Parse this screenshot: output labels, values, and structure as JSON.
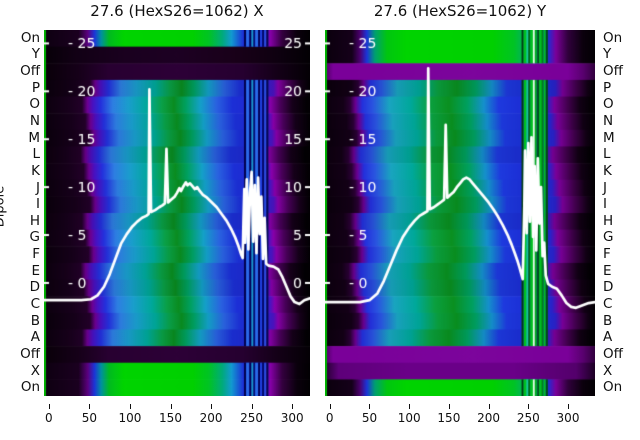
{
  "figure": {
    "ylabel": "Dipole",
    "background": "#ffffff",
    "curve_color": "#ffffff",
    "edge_line_color": "#00b400",
    "text_color": "#111111"
  },
  "row_labels": [
    "On",
    "Y",
    "Off",
    "P",
    "O",
    "N",
    "M",
    "L",
    "K",
    "J",
    "I",
    "H",
    "G",
    "F",
    "E",
    "D",
    "C",
    "B",
    "A",
    "Off",
    "X",
    "On"
  ],
  "profiles": {
    "bodyL": [
      [
        0,
        "#0c000e"
      ],
      [
        0.1,
        "#17001b"
      ],
      [
        0.155,
        "#230029"
      ],
      [
        0.175,
        "#6d0090"
      ],
      [
        0.195,
        "#4a10c0"
      ],
      [
        0.225,
        "#2430dc"
      ],
      [
        0.27,
        "#2e7ee2"
      ],
      [
        0.33,
        "#1a9ecc"
      ],
      [
        0.4,
        "#00a89a"
      ],
      [
        0.455,
        "#0aa048"
      ],
      [
        0.5,
        "#0a8c20"
      ],
      [
        0.545,
        "#00a060"
      ],
      [
        0.6,
        "#14a0c8"
      ],
      [
        0.66,
        "#2a62e0"
      ],
      [
        0.72,
        "#1c2fd6"
      ],
      [
        0.8,
        "#2028d0"
      ],
      [
        0.845,
        "#4b14c0"
      ],
      [
        0.862,
        "#8800aa"
      ],
      [
        0.9,
        "#49005a"
      ],
      [
        0.945,
        "#16001a"
      ],
      [
        1,
        "#030004"
      ]
    ],
    "greenL": [
      [
        0,
        "#0e0011"
      ],
      [
        0.13,
        "#1b0020"
      ],
      [
        0.165,
        "#5c0080"
      ],
      [
        0.19,
        "#1c35d8"
      ],
      [
        0.215,
        "#0090a0"
      ],
      [
        0.245,
        "#00bb20"
      ],
      [
        0.3,
        "#00d400"
      ],
      [
        0.56,
        "#00d000"
      ],
      [
        0.62,
        "#00c424"
      ],
      [
        0.67,
        "#00ab7a"
      ],
      [
        0.705,
        "#129ad0"
      ],
      [
        0.75,
        "#1c2fd6"
      ],
      [
        0.825,
        "#2222cc"
      ],
      [
        0.85,
        "#8800aa"
      ],
      [
        0.895,
        "#34003f"
      ],
      [
        0.95,
        "#0b000d"
      ],
      [
        1,
        "#020003"
      ]
    ],
    "darkL": [
      [
        0,
        "#070008"
      ],
      [
        0.12,
        "#120015"
      ],
      [
        0.3,
        "#1a001f"
      ],
      [
        0.5,
        "#1d0023"
      ],
      [
        0.72,
        "#190019"
      ],
      [
        0.88,
        "#0e0010"
      ],
      [
        1,
        "#030004"
      ]
    ],
    "offL": [
      [
        0,
        "#090009"
      ],
      [
        0.13,
        "#160019"
      ],
      [
        0.24,
        "#280031"
      ],
      [
        0.5,
        "#2d0037"
      ],
      [
        0.75,
        "#260030"
      ],
      [
        0.88,
        "#140017"
      ],
      [
        1,
        "#040005"
      ]
    ],
    "bodyR": [
      [
        0,
        "#0c000e"
      ],
      [
        0.08,
        "#140017"
      ],
      [
        0.105,
        "#2a0034"
      ],
      [
        0.125,
        "#6a0090"
      ],
      [
        0.15,
        "#2430dc"
      ],
      [
        0.19,
        "#2a55e0"
      ],
      [
        0.25,
        "#1aa4c0"
      ],
      [
        0.33,
        "#00a89a"
      ],
      [
        0.4,
        "#0ba040"
      ],
      [
        0.47,
        "#0a9020"
      ],
      [
        0.54,
        "#00a060"
      ],
      [
        0.6,
        "#1590cc"
      ],
      [
        0.655,
        "#1e3ade"
      ],
      [
        0.73,
        "#1c2fd6"
      ],
      [
        0.8,
        "#1c2fd6"
      ],
      [
        0.835,
        "#2a22c8"
      ],
      [
        0.862,
        "#7a0099"
      ],
      [
        0.91,
        "#43004f"
      ],
      [
        0.955,
        "#120015"
      ],
      [
        1,
        "#030004"
      ]
    ],
    "greenR": [
      [
        0,
        "#0b000d"
      ],
      [
        0.1,
        "#15001a"
      ],
      [
        0.13,
        "#4c0070"
      ],
      [
        0.155,
        "#1c35d8"
      ],
      [
        0.185,
        "#00a070"
      ],
      [
        0.23,
        "#00c610"
      ],
      [
        0.3,
        "#00d400"
      ],
      [
        0.62,
        "#00d000"
      ],
      [
        0.7,
        "#00c424"
      ],
      [
        0.755,
        "#00ab7a"
      ],
      [
        0.79,
        "#10a0c8"
      ],
      [
        0.825,
        "#1c2fd6"
      ],
      [
        0.855,
        "#7a0099"
      ],
      [
        0.9,
        "#30003c"
      ],
      [
        0.955,
        "#0b000d"
      ],
      [
        1,
        "#030004"
      ]
    ],
    "purpleR": [
      [
        0,
        "#4c0062"
      ],
      [
        0.03,
        "#7a0099"
      ],
      [
        0.55,
        "#7c059c"
      ],
      [
        0.9,
        "#7a0099"
      ],
      [
        0.955,
        "#5a0070"
      ],
      [
        1,
        "#31003d"
      ]
    ],
    "purpleR2": [
      [
        0,
        "#240030"
      ],
      [
        0.05,
        "#5e007a"
      ],
      [
        0.3,
        "#6a0088"
      ],
      [
        0.7,
        "#6a0088"
      ],
      [
        0.93,
        "#54006c"
      ],
      [
        1,
        "#1c0024"
      ]
    ]
  },
  "chart_data": [
    {
      "type": "heatmap+line",
      "title": "27.6 (HexS26=1062) X",
      "xticks": [
        0,
        50,
        100,
        150,
        200,
        250,
        300
      ],
      "xlim": [
        -6,
        322
      ],
      "ylim": [
        -11.8,
        26.4
      ],
      "yticks": [
        25,
        20,
        15,
        10,
        5,
        0
      ],
      "ytick_left_labels": [
        "- 25",
        "- 20",
        "- 15",
        "- 10",
        "- 5",
        "- 0"
      ],
      "ytick_right_labels": [
        "25",
        "20",
        "15",
        "10",
        "5",
        "0"
      ],
      "row_profiles": [
        "greenL",
        "darkL",
        "offL",
        "bodyL",
        "bodyL",
        "bodyL",
        "bodyL",
        "bodyL",
        "bodyL",
        "bodyL",
        "bodyL",
        "bodyL",
        "bodyL",
        "bodyL",
        "bodyL",
        "bodyL",
        "bodyL",
        "bodyL",
        "bodyL",
        "offL",
        "greenL",
        "greenL"
      ],
      "stripe_skip": [
        1,
        2,
        19
      ],
      "stripes": [
        {
          "f": 0.752,
          "w": 2,
          "c": "#000050"
        },
        {
          "f": 0.76,
          "w": 3,
          "c": "#2a6ae8"
        },
        {
          "f": 0.772,
          "w": 2,
          "c": "#000050"
        },
        {
          "f": 0.78,
          "w": 2,
          "c": "#18a0c8"
        },
        {
          "f": 0.787,
          "w": 2,
          "c": "#001070"
        },
        {
          "f": 0.794,
          "w": 3,
          "c": "#2a6ae8"
        },
        {
          "f": 0.805,
          "w": 2,
          "c": "#000050"
        },
        {
          "f": 0.812,
          "w": 2,
          "c": "#2040e0"
        },
        {
          "f": 0.82,
          "w": 2,
          "c": "#000868"
        },
        {
          "f": 0.828,
          "w": 2,
          "c": "#2a50e0"
        },
        {
          "f": 0.836,
          "w": 2,
          "c": "#000a50"
        }
      ],
      "curve": [
        [
          -6,
          -1.8
        ],
        [
          40,
          -1.8
        ],
        [
          52,
          -1.7
        ],
        [
          60,
          -1.3
        ],
        [
          68,
          -0.4
        ],
        [
          75,
          0.9
        ],
        [
          82,
          2.5
        ],
        [
          89,
          4.1
        ],
        [
          96,
          5.1
        ],
        [
          103,
          5.9
        ],
        [
          109,
          6.4
        ],
        [
          115,
          6.8
        ],
        [
          120,
          7.0
        ],
        [
          123,
          7.2
        ],
        [
          124,
          20.2
        ],
        [
          126,
          7.4
        ],
        [
          131,
          7.6
        ],
        [
          136,
          7.9
        ],
        [
          140,
          8.1
        ],
        [
          143,
          8.3
        ],
        [
          145,
          14.0
        ],
        [
          147,
          8.4
        ],
        [
          151,
          8.7
        ],
        [
          155,
          9.0
        ],
        [
          158,
          9.4
        ],
        [
          161,
          9.9
        ],
        [
          163,
          9.6
        ],
        [
          166,
          10.1
        ],
        [
          169,
          10.5
        ],
        [
          171,
          10.2
        ],
        [
          174,
          10.4
        ],
        [
          177,
          10.1
        ],
        [
          180,
          9.8
        ],
        [
          183,
          10.0
        ],
        [
          186,
          9.6
        ],
        [
          190,
          9.2
        ],
        [
          195,
          8.9
        ],
        [
          201,
          8.4
        ],
        [
          207,
          7.9
        ],
        [
          213,
          7.2
        ],
        [
          219,
          6.5
        ],
        [
          225,
          5.6
        ],
        [
          230,
          4.7
        ],
        [
          234,
          3.8
        ],
        [
          237,
          3.0
        ],
        [
          239,
          2.6
        ],
        [
          240,
          6.5
        ],
        [
          241,
          9.8
        ],
        [
          242,
          4.2
        ],
        [
          244,
          10.8
        ],
        [
          246,
          3.5
        ],
        [
          248,
          9.4
        ],
        [
          250,
          11.6
        ],
        [
          252,
          4.3
        ],
        [
          254,
          10.2
        ],
        [
          256,
          3.1
        ],
        [
          258,
          11.0
        ],
        [
          260,
          5.1
        ],
        [
          262,
          9.0
        ],
        [
          264,
          2.5
        ],
        [
          266,
          6.8
        ],
        [
          268,
          2.0
        ],
        [
          271,
          1.8
        ],
        [
          277,
          1.7
        ],
        [
          283,
          1.4
        ],
        [
          288,
          0.6
        ],
        [
          293,
          -0.4
        ],
        [
          298,
          -1.4
        ],
        [
          303,
          -2.0
        ],
        [
          309,
          -2.2
        ],
        [
          315,
          -1.8
        ],
        [
          322,
          -1.6
        ]
      ]
    },
    {
      "type": "heatmap+line",
      "title": "27.6 (HexS26=1062) Y",
      "xticks": [
        0,
        50,
        100,
        150,
        200,
        250,
        300
      ],
      "xlim": [
        -6,
        334
      ],
      "ylim": [
        -11.8,
        26.4
      ],
      "yticks": [
        25,
        20,
        15,
        10,
        5,
        0
      ],
      "ytick_left_labels": [
        "- 25",
        "- 20",
        "- 15",
        "- 10",
        "- 5",
        "- 0"
      ],
      "ytick_right_labels": null,
      "row_profiles": [
        "greenR",
        "greenR",
        "purpleR",
        "bodyR",
        "bodyR",
        "bodyR",
        "bodyR",
        "bodyR",
        "bodyR",
        "bodyR",
        "bodyR",
        "bodyR",
        "bodyR",
        "bodyR",
        "bodyR",
        "bodyR",
        "bodyR",
        "bodyR",
        "bodyR",
        "purpleR",
        "purpleR2",
        "greenR"
      ],
      "stripe_skip": [
        2,
        19,
        20
      ],
      "stripes": [
        {
          "f": 0.728,
          "w": 2,
          "c": "#003a10"
        },
        {
          "f": 0.736,
          "w": 3,
          "c": "#00c020"
        },
        {
          "f": 0.746,
          "w": 2,
          "c": "#18c8a0"
        },
        {
          "f": 0.753,
          "w": 2,
          "c": "#006618"
        },
        {
          "f": 0.76,
          "w": 3,
          "c": "#00c020"
        },
        {
          "f": 0.77,
          "w": 2,
          "c": "#e8ffe8"
        },
        {
          "f": 0.777,
          "w": 2,
          "c": "#00a818"
        },
        {
          "f": 0.786,
          "w": 2,
          "c": "#005014"
        },
        {
          "f": 0.793,
          "w": 3,
          "c": "#00c020"
        },
        {
          "f": 0.802,
          "w": 2,
          "c": "#008018"
        },
        {
          "f": 0.81,
          "w": 2,
          "c": "#00c020"
        },
        {
          "f": 0.818,
          "w": 2,
          "c": "#004c12"
        }
      ],
      "curve": [
        [
          -6,
          -2.0
        ],
        [
          38,
          -2.0
        ],
        [
          50,
          -1.8
        ],
        [
          60,
          -1.1
        ],
        [
          68,
          0.2
        ],
        [
          76,
          1.8
        ],
        [
          84,
          3.4
        ],
        [
          92,
          4.8
        ],
        [
          100,
          5.8
        ],
        [
          107,
          6.5
        ],
        [
          113,
          7.0
        ],
        [
          119,
          7.3
        ],
        [
          123,
          7.5
        ],
        [
          124,
          22.4
        ],
        [
          126,
          7.7
        ],
        [
          131,
          7.9
        ],
        [
          136,
          8.2
        ],
        [
          141,
          8.5
        ],
        [
          144,
          8.7
        ],
        [
          146,
          16.5
        ],
        [
          148,
          8.9
        ],
        [
          152,
          9.2
        ],
        [
          156,
          9.5
        ],
        [
          160,
          10.0
        ],
        [
          164,
          10.4
        ],
        [
          168,
          10.8
        ],
        [
          172,
          11.0
        ],
        [
          176,
          10.8
        ],
        [
          180,
          10.4
        ],
        [
          184,
          10.0
        ],
        [
          189,
          9.5
        ],
        [
          194,
          9.0
        ],
        [
          200,
          8.4
        ],
        [
          206,
          7.7
        ],
        [
          212,
          6.9
        ],
        [
          218,
          6.0
        ],
        [
          224,
          5.0
        ],
        [
          229,
          4.0
        ],
        [
          233,
          3.1
        ],
        [
          236,
          2.4
        ],
        [
          239,
          1.6
        ],
        [
          241,
          1.0
        ],
        [
          243,
          0.4
        ],
        [
          245,
          8.0
        ],
        [
          246,
          13.8
        ],
        [
          248,
          5.2
        ],
        [
          250,
          14.6
        ],
        [
          252,
          6.4
        ],
        [
          254,
          15.2
        ],
        [
          256,
          4.8
        ],
        [
          258,
          12.2
        ],
        [
          260,
          3.4
        ],
        [
          262,
          13.0
        ],
        [
          264,
          6.2
        ],
        [
          266,
          10.0
        ],
        [
          268,
          2.8
        ],
        [
          270,
          4.2
        ],
        [
          272,
          0.8
        ],
        [
          275,
          -0.1
        ],
        [
          280,
          -0.4
        ],
        [
          286,
          -0.6
        ],
        [
          292,
          -1.3
        ],
        [
          298,
          -2.1
        ],
        [
          304,
          -2.5
        ],
        [
          310,
          -2.6
        ],
        [
          316,
          -2.4
        ],
        [
          326,
          -2.1
        ],
        [
          334,
          -2.0
        ]
      ]
    }
  ]
}
